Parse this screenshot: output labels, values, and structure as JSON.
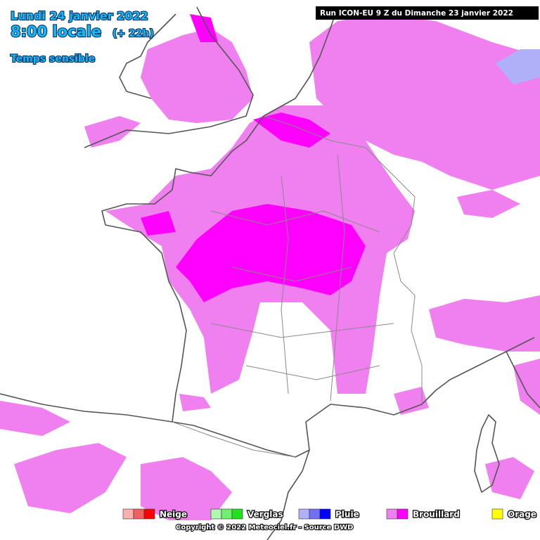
{
  "header": {
    "date": "Lundi 24 janvier 2022",
    "time": "8:00 locale",
    "lead": "(+ 22h)",
    "product": "Temps sensible",
    "run": "Run ICON-EU 9 Z du Dimanche 23 janvier 2022"
  },
  "legend": [
    {
      "label": "Neige",
      "colors": [
        "#f8b0b0",
        "#f06060",
        "#ff0000"
      ]
    },
    {
      "label": "Verglas",
      "colors": [
        "#b0f8b0",
        "#70f070",
        "#20e020"
      ]
    },
    {
      "label": "Pluie",
      "colors": [
        "#b0b0f8",
        "#7070f0",
        "#0000ff"
      ]
    },
    {
      "label": "Brouillard",
      "colors": [
        "#f080f0",
        "#ff00ff"
      ]
    },
    {
      "label": "Orage",
      "colors": [
        "#ffff00"
      ]
    }
  ],
  "copyright": "Copyright © 2022 Meteociel.fr - Source DWD"
}
